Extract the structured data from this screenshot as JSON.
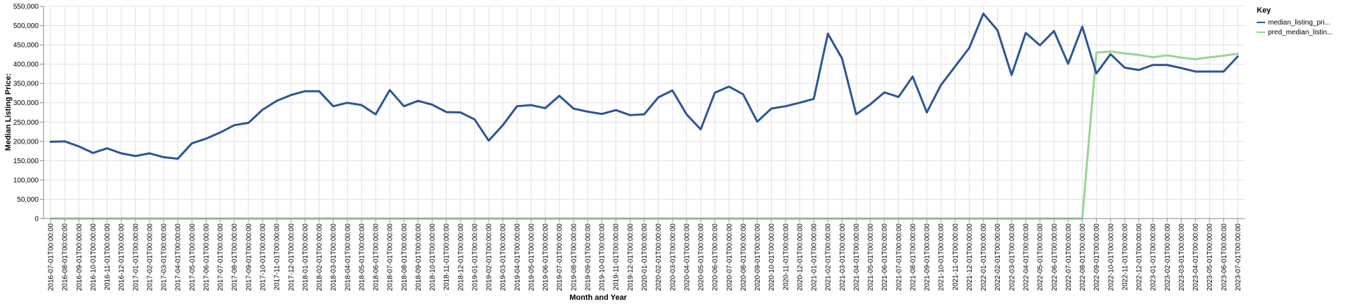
{
  "chart_data": {
    "type": "line",
    "xlabel": "Month and Year",
    "ylabel": "Median Listing Price:",
    "ylim": [
      0,
      550000
    ],
    "yticks": [
      "0",
      "50,000",
      "100,000",
      "150,000",
      "200,000",
      "250,000",
      "300,000",
      "350,000",
      "400,000",
      "450,000",
      "500,000",
      "550,000"
    ],
    "grid": true,
    "legend": {
      "title": "Key",
      "position": "top-right"
    },
    "x": [
      "2016-07-01T00:00:00",
      "2016-08-01T00:00:00",
      "2016-09-01T00:00:00",
      "2016-10-01T00:00:00",
      "2016-11-01T00:00:00",
      "2016-12-01T00:00:00",
      "2017-01-01T00:00:00",
      "2017-02-01T00:00:00",
      "2017-03-01T00:00:00",
      "2017-04-01T00:00:00",
      "2017-05-01T00:00:00",
      "2017-06-01T00:00:00",
      "2017-07-01T00:00:00",
      "2017-08-01T00:00:00",
      "2017-09-01T00:00:00",
      "2017-10-01T00:00:00",
      "2017-11-01T00:00:00",
      "2017-12-01T00:00:00",
      "2018-01-01T00:00:00",
      "2018-02-01T00:00:00",
      "2018-03-01T00:00:00",
      "2018-04-01T00:00:00",
      "2018-05-01T00:00:00",
      "2018-06-01T00:00:00",
      "2018-07-01T00:00:00",
      "2018-08-01T00:00:00",
      "2018-09-01T00:00:00",
      "2018-10-01T00:00:00",
      "2018-11-01T00:00:00",
      "2018-12-01T00:00:00",
      "2019-01-01T00:00:00",
      "2019-02-01T00:00:00",
      "2019-03-01T00:00:00",
      "2019-04-01T00:00:00",
      "2019-05-01T00:00:00",
      "2019-06-01T00:00:00",
      "2019-07-01T00:00:00",
      "2019-08-01T00:00:00",
      "2019-09-01T00:00:00",
      "2019-10-01T00:00:00",
      "2019-11-01T00:00:00",
      "2019-12-01T00:00:00",
      "2020-01-01T00:00:00",
      "2020-02-01T00:00:00",
      "2020-03-01T00:00:00",
      "2020-04-01T00:00:00",
      "2020-05-01T00:00:00",
      "2020-06-01T00:00:00",
      "2020-07-01T00:00:00",
      "2020-08-01T00:00:00",
      "2020-09-01T00:00:00",
      "2020-10-01T00:00:00",
      "2020-11-01T00:00:00",
      "2020-12-01T00:00:00",
      "2021-01-01T00:00:00",
      "2021-02-01T00:00:00",
      "2021-03-01T00:00:00",
      "2021-04-01T00:00:00",
      "2021-05-01T00:00:00",
      "2021-06-01T00:00:00",
      "2021-07-01T00:00:00",
      "2021-08-01T00:00:00",
      "2021-09-01T00:00:00",
      "2021-10-01T00:00:00",
      "2021-11-01T00:00:00",
      "2021-12-01T00:00:00",
      "2022-01-01T00:00:00",
      "2022-02-01T00:00:00",
      "2022-03-01T00:00:00",
      "2022-04-01T00:00:00",
      "2022-05-01T00:00:00",
      "2022-06-01T00:00:00",
      "2022-07-01T00:00:00",
      "2022-08-01T00:00:00",
      "2022-09-01T00:00:00",
      "2022-10-01T00:00:00",
      "2022-11-01T00:00:00",
      "2022-12-01T00:00:00",
      "2023-01-01T00:00:00",
      "2023-02-01T00:00:00",
      "2023-03-01T00:00:00",
      "2023-04-01T00:00:00",
      "2023-05-01T00:00:00",
      "2023-06-01T00:00:00",
      "2023-07-01T00:00:00"
    ],
    "series": [
      {
        "name": "median_listing_pri...",
        "color": "#2b5597",
        "values": [
          199000,
          200000,
          187000,
          170000,
          182000,
          169000,
          162000,
          169000,
          159000,
          155000,
          195000,
          207000,
          223000,
          242000,
          248000,
          282000,
          305000,
          320000,
          330000,
          330000,
          291000,
          300000,
          294000,
          270000,
          333000,
          291000,
          305000,
          295000,
          276000,
          275000,
          257000,
          202000,
          242000,
          291000,
          294000,
          286000,
          318000,
          285000,
          277000,
          271000,
          281000,
          268000,
          270000,
          314000,
          332000,
          270000,
          231000,
          326000,
          342000,
          322000,
          251000,
          285000,
          291000,
          300000,
          310000,
          479000,
          415000,
          270000,
          296000,
          327000,
          315000,
          368000,
          275000,
          346000,
          394000,
          442000,
          531000,
          488000,
          372000,
          481000,
          449000,
          486000,
          401000,
          497000,
          376000,
          426000,
          391000,
          385000,
          398000,
          398000,
          390000,
          381000,
          381000,
          381000,
          420000
        ]
      },
      {
        "name": "pred_median_listin...",
        "color": "#98d594",
        "values": [
          0,
          0,
          0,
          0,
          0,
          0,
          0,
          0,
          0,
          0,
          0,
          0,
          0,
          0,
          0,
          0,
          0,
          0,
          0,
          0,
          0,
          0,
          0,
          0,
          0,
          0,
          0,
          0,
          0,
          0,
          0,
          0,
          0,
          0,
          0,
          0,
          0,
          0,
          0,
          0,
          0,
          0,
          0,
          0,
          0,
          0,
          0,
          0,
          0,
          0,
          0,
          0,
          0,
          0,
          0,
          0,
          0,
          0,
          0,
          0,
          0,
          0,
          0,
          0,
          0,
          0,
          0,
          0,
          0,
          0,
          0,
          0,
          0,
          0,
          430000,
          433000,
          428000,
          424000,
          418000,
          423000,
          417000,
          413000,
          418000,
          422000,
          427000
        ]
      }
    ]
  }
}
